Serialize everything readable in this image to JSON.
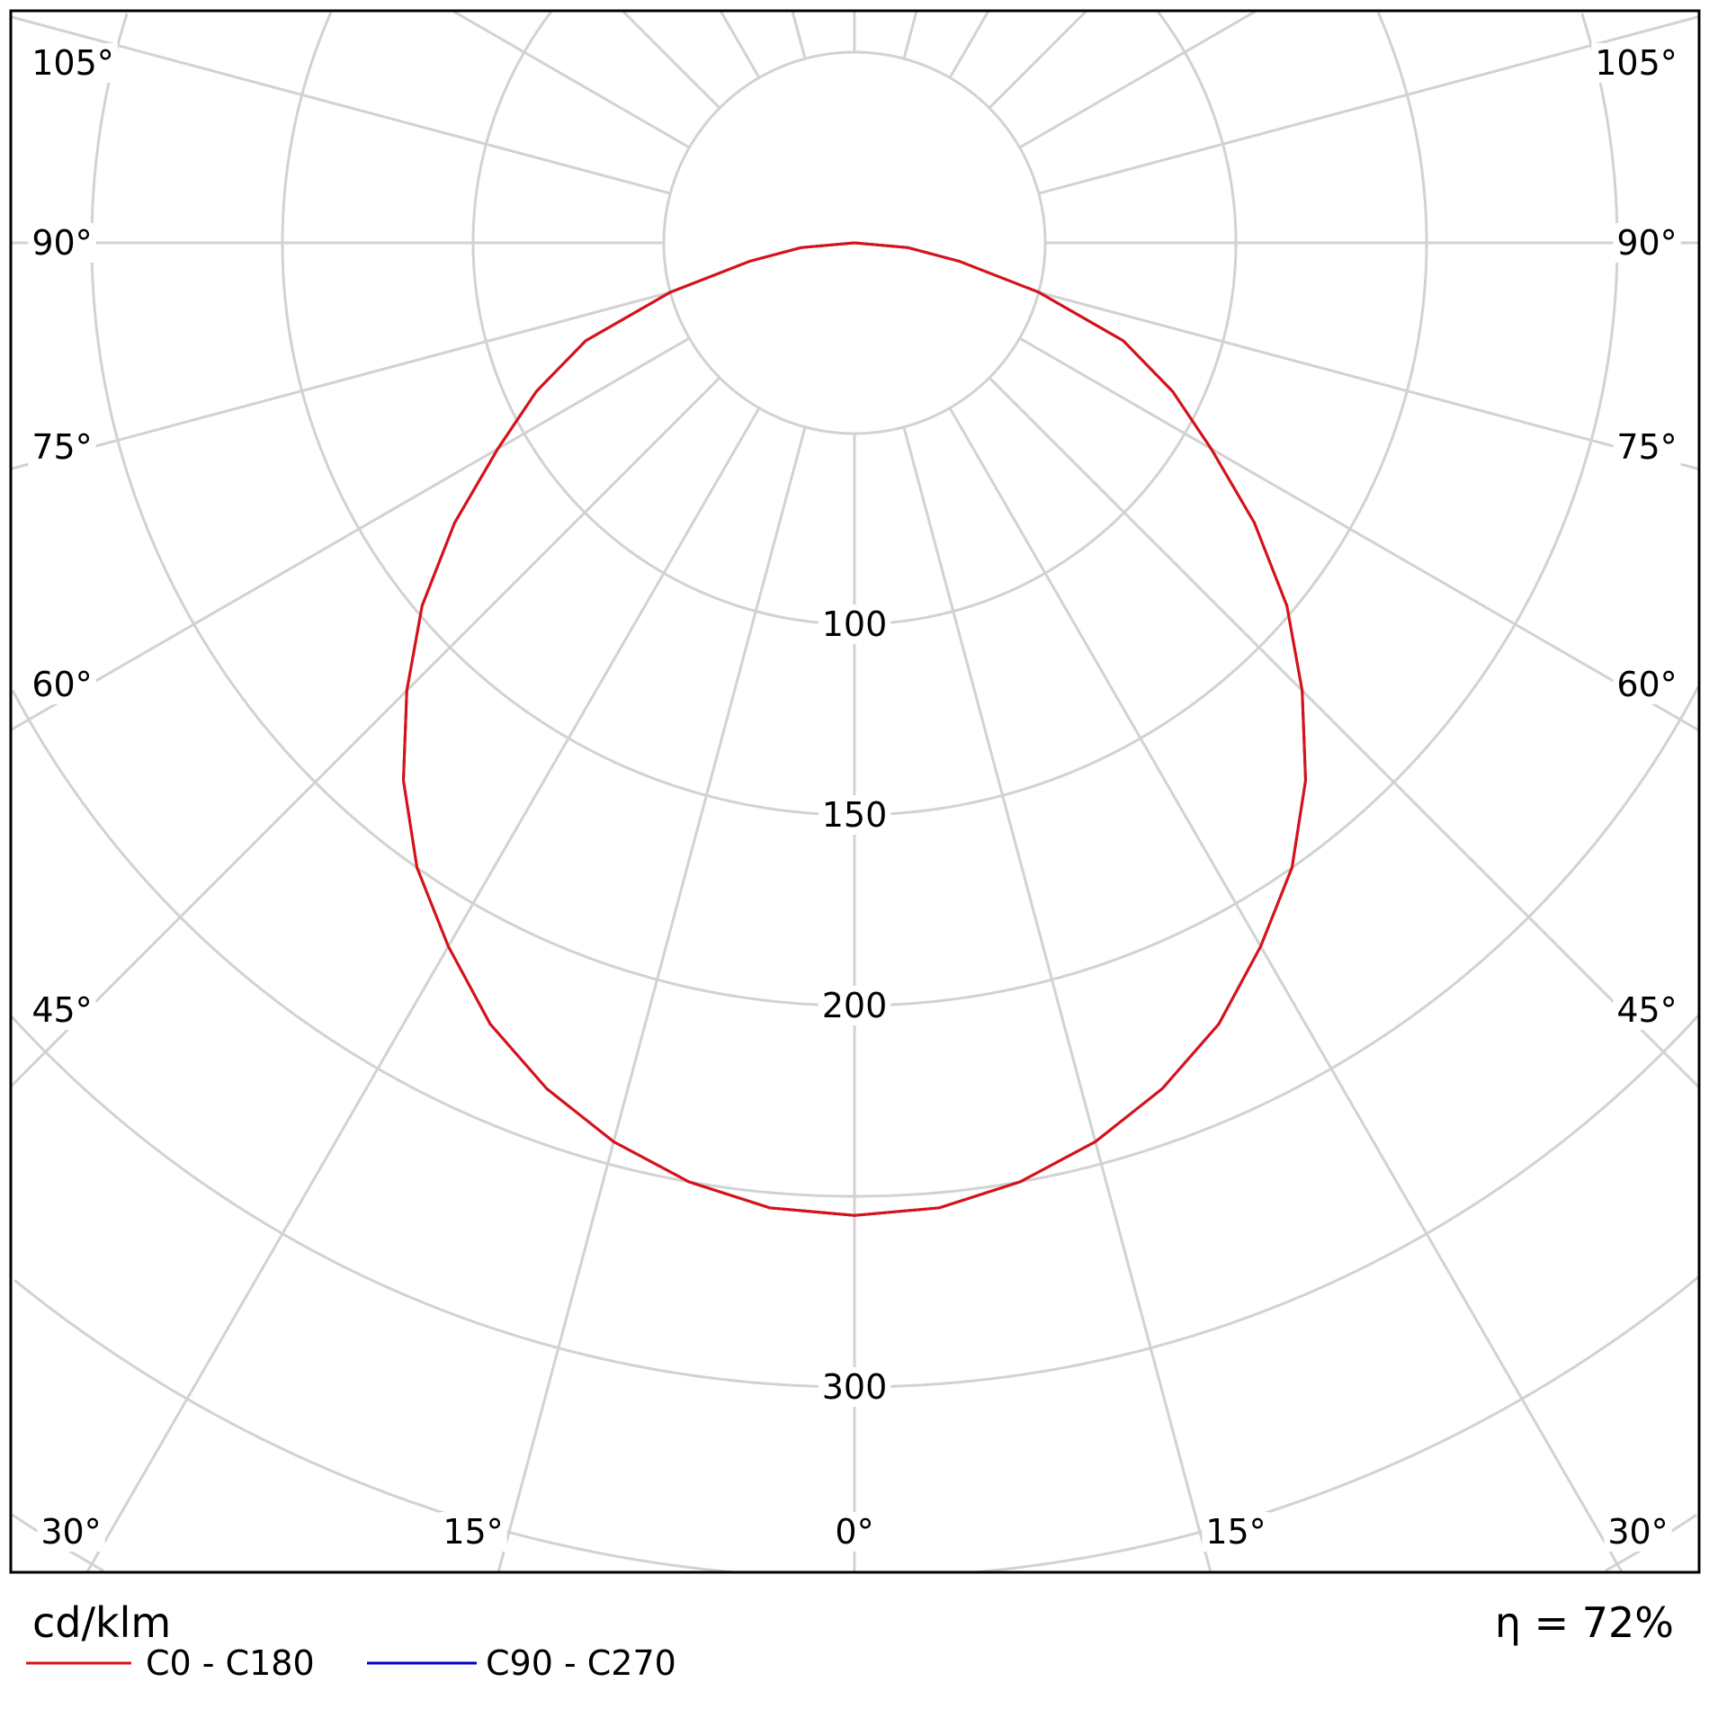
{
  "chart_data": {
    "type": "polar-line",
    "unit_label": "cd/klm",
    "efficiency_label": "η = 72%",
    "radial_ticks": [
      50,
      100,
      150,
      200,
      250,
      300,
      350,
      400
    ],
    "radial_tick_labels": [
      "100",
      "150",
      "200",
      "300"
    ],
    "angle_labels": {
      "bottom": [
        "30°",
        "15°",
        "0°",
        "15°",
        "30°"
      ],
      "sides": [
        "45°",
        "60°",
        "75°",
        "90°",
        "105°"
      ]
    },
    "angle_step_deg": 15,
    "grid": true,
    "legend_placement": "bottom-left",
    "series": [
      {
        "name": "C0 - C180",
        "color": "#dd1111",
        "angles": [
          0,
          5,
          10,
          15,
          20,
          25,
          30,
          35,
          40,
          45,
          50,
          55,
          60,
          65,
          70,
          75,
          80,
          85,
          90
        ],
        "values": [
          255,
          254,
          250,
          244,
          236,
          226,
          213,
          200,
          184,
          166,
          148,
          128,
          108,
          92,
          75,
          50,
          28,
          14,
          0
        ]
      },
      {
        "name": "C90 - C270",
        "color": "#0000cc",
        "angles": [
          0,
          5,
          10,
          15,
          20,
          25,
          30,
          35,
          40,
          45,
          50,
          55,
          60,
          65,
          70,
          75,
          80,
          85,
          90
        ],
        "values": [
          255,
          254,
          250,
          244,
          236,
          226,
          213,
          200,
          184,
          166,
          148,
          128,
          108,
          92,
          75,
          50,
          28,
          14,
          0
        ]
      }
    ]
  }
}
